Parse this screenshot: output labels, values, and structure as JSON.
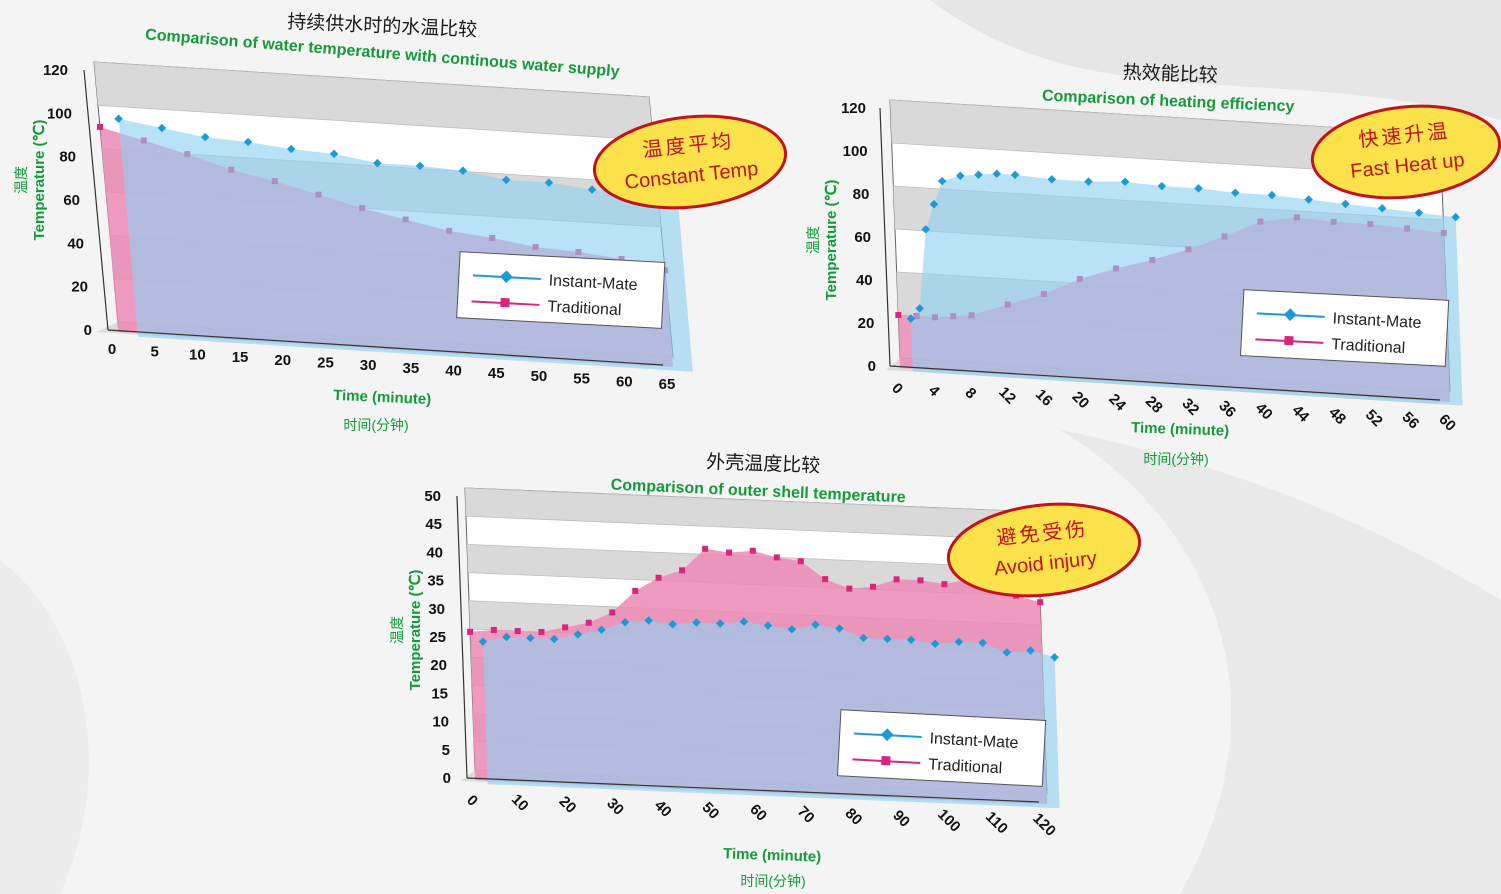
{
  "colors": {
    "instant_mate": "#1b9ad6",
    "traditional": "#d9257e",
    "fill_instant": "#8fd0f2",
    "fill_traditional": "#ec88b4",
    "overlap": "#a98fc4",
    "band_gray": "#d9d9d9",
    "title_green": "#149a3a",
    "badge_fill": "#fbe24a",
    "badge_border": "#c4121a"
  },
  "chart_data": [
    {
      "type": "area",
      "title_cn": "持续供水时的水温比较",
      "title": "Comparison of water temperature with continous water supply",
      "xlabel": "Time (minute)",
      "xlabel_cn": "时间(分钟)",
      "ylabel": "Temperature (℃)",
      "ylabel_cn": "温度",
      "xlim": [
        0,
        65
      ],
      "ylim": [
        0,
        120
      ],
      "x_ticks": [
        "0",
        "5",
        "10",
        "15",
        "20",
        "25",
        "30",
        "35",
        "40",
        "45",
        "50",
        "55",
        "60",
        "65"
      ],
      "y_ticks": [
        "0",
        "20",
        "40",
        "60",
        "80",
        "100",
        "120"
      ],
      "badge_cn": "温度平均",
      "badge_en": "Constant Temp",
      "legend": [
        "Instant-Mate",
        "Traditional"
      ],
      "legend_position": "bottom-right",
      "series": [
        {
          "name": "Instant-Mate",
          "x": [
            0,
            5,
            10,
            15,
            20,
            25,
            30,
            35,
            40,
            45,
            50,
            55,
            60,
            65
          ],
          "values": [
            96,
            93,
            90,
            89,
            87,
            86,
            83,
            83,
            82,
            79,
            79,
            77,
            77,
            76
          ]
        },
        {
          "name": "Traditional",
          "x": [
            0,
            5,
            10,
            15,
            20,
            25,
            30,
            35,
            40,
            45,
            50,
            55,
            60,
            65
          ],
          "values": [
            90,
            85,
            80,
            74,
            70,
            65,
            60,
            56,
            52,
            50,
            47,
            46,
            44,
            40
          ]
        }
      ]
    },
    {
      "type": "area",
      "title_cn": "热效能比较",
      "title": "Comparison of heating efficiency",
      "xlabel": "Time (minute)",
      "xlabel_cn": "时间(分钟)",
      "ylabel": "Temperature (℃)",
      "ylabel_cn": "温度",
      "xlim": [
        0,
        60
      ],
      "ylim": [
        0,
        120
      ],
      "x_ticks": [
        "0",
        "4",
        "8",
        "12",
        "16",
        "20",
        "24",
        "28",
        "32",
        "36",
        "40",
        "44",
        "48",
        "52",
        "56",
        "60"
      ],
      "y_ticks": [
        "0",
        "20",
        "40",
        "60",
        "80",
        "100",
        "120"
      ],
      "badge_cn": "快速升温",
      "badge_en": "Fast Heat up",
      "legend": [
        "Instant-Mate",
        "Traditional"
      ],
      "legend_position": "bottom-right",
      "series": [
        {
          "name": "Instant-Mate",
          "x": [
            0,
            1,
            2,
            3,
            4,
            6,
            8,
            10,
            12,
            16,
            20,
            24,
            28,
            32,
            36,
            40,
            44,
            48,
            52,
            56,
            60
          ],
          "values": [
            20,
            25,
            62,
            74,
            85,
            88,
            89,
            90,
            90,
            89,
            89,
            90,
            89,
            89,
            88,
            88,
            87,
            86,
            85,
            84,
            83
          ]
        },
        {
          "name": "Traditional",
          "x": [
            0,
            2,
            4,
            6,
            8,
            12,
            16,
            20,
            24,
            28,
            32,
            36,
            40,
            44,
            48,
            52,
            56,
            60
          ],
          "values": [
            20,
            20,
            20,
            21,
            22,
            28,
            34,
            42,
            48,
            53,
            59,
            66,
            74,
            77,
            76,
            76,
            75,
            74
          ]
        }
      ]
    },
    {
      "type": "area",
      "title_cn": "外壳温度比较",
      "title": "Comparison of outer shell temperature",
      "xlabel": "Time (minute)",
      "xlabel_cn": "时间(分钟)",
      "ylabel": "Temperature (℃)",
      "ylabel_cn": "温度",
      "xlim": [
        0,
        120
      ],
      "ylim": [
        0,
        50
      ],
      "x_ticks": [
        "0",
        "10",
        "20",
        "30",
        "40",
        "50",
        "60",
        "70",
        "80",
        "90",
        "100",
        "110",
        "120"
      ],
      "y_ticks": [
        "0",
        "5",
        "10",
        "15",
        "20",
        "25",
        "30",
        "35",
        "40",
        "45",
        "50"
      ],
      "badge_cn": "避免受伤",
      "badge_en": "Avoid injury",
      "legend": [
        "Instant-Mate",
        "Traditional"
      ],
      "legend_position": "bottom-right",
      "series": [
        {
          "name": "Instant-Mate",
          "x": [
            0,
            5,
            10,
            15,
            20,
            25,
            30,
            35,
            40,
            45,
            50,
            55,
            60,
            65,
            70,
            75,
            80,
            85,
            90,
            95,
            100,
            105,
            110,
            115,
            120
          ],
          "values": [
            23.5,
            24.5,
            24.5,
            24.5,
            25.5,
            26.5,
            28,
            28.5,
            28,
            28.5,
            28.5,
            29,
            28.5,
            28,
            29,
            28.5,
            27,
            27,
            27,
            26.5,
            27,
            27,
            25.5,
            26,
            25
          ]
        },
        {
          "name": "Traditional",
          "x": [
            0,
            5,
            10,
            15,
            20,
            25,
            30,
            35,
            40,
            45,
            50,
            55,
            60,
            65,
            70,
            75,
            80,
            85,
            90,
            95,
            100,
            105,
            110,
            115,
            120
          ],
          "values": [
            24.5,
            25,
            25,
            25,
            26,
            27,
            29,
            33,
            35.5,
            37,
            41,
            40.5,
            41,
            40,
            39.5,
            36.5,
            35,
            35.5,
            37,
            37,
            36.5,
            37.5,
            36,
            35,
            34
          ]
        }
      ]
    }
  ]
}
